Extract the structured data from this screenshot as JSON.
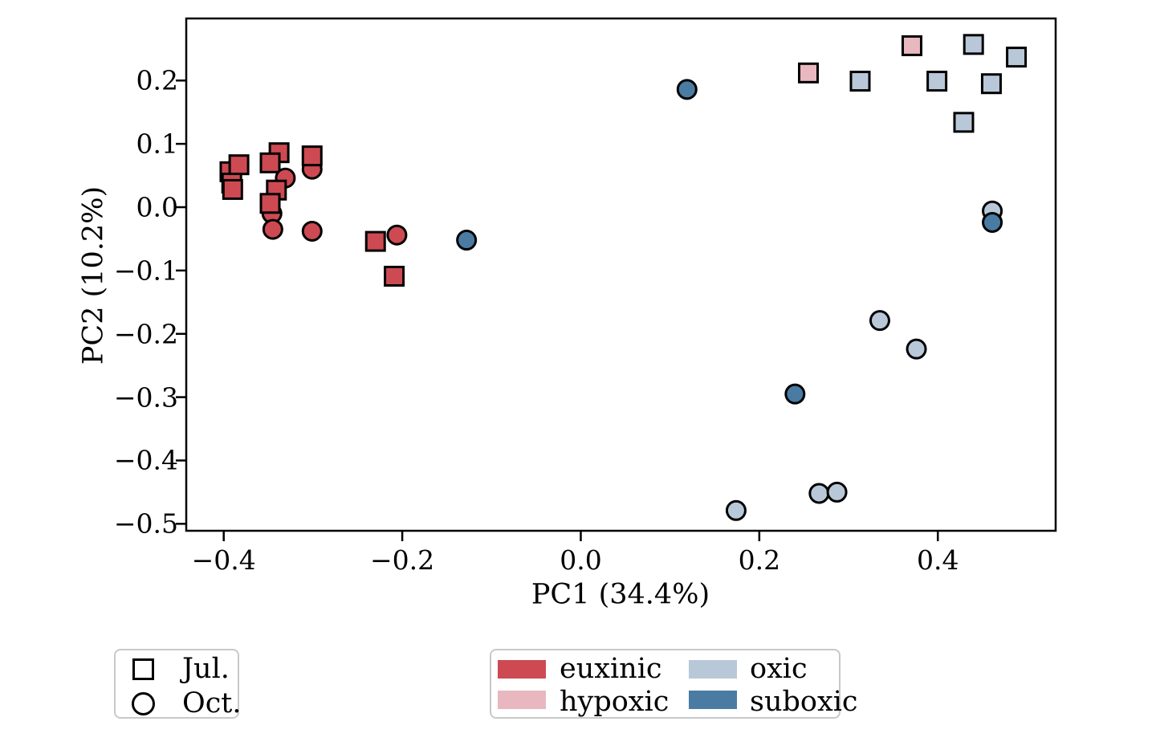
{
  "figure": {
    "description": "PCA scatter plot of samples by month (marker shape) and oxygen regime (color)"
  },
  "axes": {
    "x": {
      "label": "PC1 (34.4%)",
      "tick_labels": [
        "−0.4",
        "−0.2",
        "0.0",
        "0.2",
        "0.4"
      ],
      "tick_values": [
        -0.4,
        -0.2,
        0.0,
        0.2,
        0.4
      ],
      "lim": [
        -0.442,
        0.532
      ]
    },
    "y": {
      "label": "PC2 (10.2%)",
      "tick_labels": [
        "0.2",
        "0.1",
        "0.0",
        "−0.1",
        "−0.2",
        "−0.3",
        "−0.4",
        "−0.5"
      ],
      "tick_values": [
        0.2,
        0.1,
        0.0,
        -0.1,
        -0.2,
        -0.3,
        -0.4,
        -0.5
      ],
      "lim": [
        -0.511,
        0.298
      ]
    }
  },
  "legend_markers": {
    "items": [
      {
        "marker": "square",
        "label": "Jul."
      },
      {
        "marker": "circle",
        "label": "Oct."
      }
    ]
  },
  "legend_colors": {
    "items": [
      {
        "label": "euxinic",
        "color": "#cd4a53"
      },
      {
        "label": "hypoxic",
        "color": "#e8b7c0"
      },
      {
        "label": "oxic",
        "color": "#b9c8d8"
      },
      {
        "label": "suboxic",
        "color": "#4a7ba2"
      }
    ]
  },
  "chart_data": {
    "type": "scatter",
    "title": "",
    "xlabel": "PC1 (34.4%)",
    "ylabel": "PC2 (10.2%)",
    "xlim": [
      -0.442,
      0.532
    ],
    "ylim": [
      -0.511,
      0.298
    ],
    "grid": false,
    "legend_position": "below plot, two boxes",
    "marker_shape_meaning": {
      "square": "Jul.",
      "circle": "Oct."
    },
    "colors": {
      "euxinic": "#cd4a53",
      "hypoxic": "#e8b7c0",
      "oxic": "#b9c8d8",
      "suboxic": "#4a7ba2"
    },
    "points": [
      {
        "x": -0.393,
        "y": 0.056,
        "marker": "square",
        "group": "euxinic"
      },
      {
        "x": -0.383,
        "y": 0.067,
        "marker": "square",
        "group": "euxinic"
      },
      {
        "x": -0.391,
        "y": 0.038,
        "marker": "square",
        "group": "euxinic"
      },
      {
        "x": -0.39,
        "y": 0.028,
        "marker": "square",
        "group": "euxinic"
      },
      {
        "x": -0.338,
        "y": 0.086,
        "marker": "square",
        "group": "euxinic"
      },
      {
        "x": -0.348,
        "y": 0.07,
        "marker": "square",
        "group": "euxinic"
      },
      {
        "x": -0.331,
        "y": 0.046,
        "marker": "circle",
        "group": "euxinic"
      },
      {
        "x": -0.341,
        "y": 0.027,
        "marker": "square",
        "group": "euxinic"
      },
      {
        "x": -0.346,
        "y": -0.01,
        "marker": "circle",
        "group": "euxinic"
      },
      {
        "x": -0.348,
        "y": 0.006,
        "marker": "square",
        "group": "euxinic"
      },
      {
        "x": -0.345,
        "y": -0.035,
        "marker": "circle",
        "group": "euxinic"
      },
      {
        "x": -0.301,
        "y": 0.06,
        "marker": "circle",
        "group": "euxinic"
      },
      {
        "x": -0.301,
        "y": 0.081,
        "marker": "square",
        "group": "euxinic"
      },
      {
        "x": -0.301,
        "y": -0.038,
        "marker": "circle",
        "group": "euxinic"
      },
      {
        "x": -0.23,
        "y": -0.054,
        "marker": "square",
        "group": "euxinic"
      },
      {
        "x": -0.206,
        "y": -0.044,
        "marker": "circle",
        "group": "euxinic"
      },
      {
        "x": -0.209,
        "y": -0.109,
        "marker": "square",
        "group": "euxinic"
      },
      {
        "x": -0.128,
        "y": -0.052,
        "marker": "circle",
        "group": "suboxic"
      },
      {
        "x": 0.119,
        "y": 0.186,
        "marker": "circle",
        "group": "suboxic"
      },
      {
        "x": 0.255,
        "y": 0.212,
        "marker": "square",
        "group": "hypoxic"
      },
      {
        "x": 0.371,
        "y": 0.255,
        "marker": "square",
        "group": "hypoxic"
      },
      {
        "x": 0.313,
        "y": 0.199,
        "marker": "square",
        "group": "oxic"
      },
      {
        "x": 0.399,
        "y": 0.199,
        "marker": "square",
        "group": "oxic"
      },
      {
        "x": 0.44,
        "y": 0.257,
        "marker": "square",
        "group": "oxic"
      },
      {
        "x": 0.46,
        "y": 0.195,
        "marker": "square",
        "group": "oxic"
      },
      {
        "x": 0.488,
        "y": 0.237,
        "marker": "square",
        "group": "oxic"
      },
      {
        "x": 0.429,
        "y": 0.134,
        "marker": "square",
        "group": "oxic"
      },
      {
        "x": 0.461,
        "y": -0.006,
        "marker": "circle",
        "group": "oxic"
      },
      {
        "x": 0.461,
        "y": -0.024,
        "marker": "circle",
        "group": "suboxic"
      },
      {
        "x": 0.335,
        "y": -0.179,
        "marker": "circle",
        "group": "oxic"
      },
      {
        "x": 0.376,
        "y": -0.224,
        "marker": "circle",
        "group": "oxic"
      },
      {
        "x": 0.24,
        "y": -0.295,
        "marker": "circle",
        "group": "suboxic"
      },
      {
        "x": 0.267,
        "y": -0.452,
        "marker": "circle",
        "group": "oxic"
      },
      {
        "x": 0.287,
        "y": -0.45,
        "marker": "circle",
        "group": "oxic"
      },
      {
        "x": 0.174,
        "y": -0.479,
        "marker": "circle",
        "group": "oxic"
      }
    ]
  }
}
